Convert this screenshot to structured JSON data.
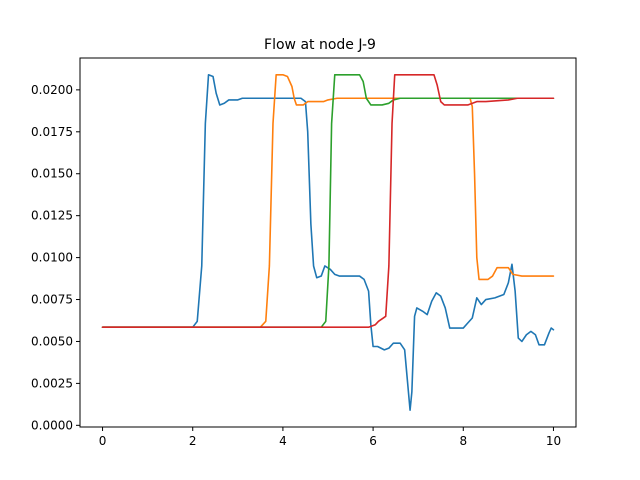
{
  "chart_data": {
    "type": "line",
    "title": "Flow at node J-9",
    "xlabel": "",
    "ylabel": "",
    "xlim": [
      -0.5,
      10.5
    ],
    "ylim": [
      -0.0001,
      0.0219
    ],
    "xticks": [
      0,
      2,
      4,
      6,
      8,
      10
    ],
    "xtick_labels": [
      "0",
      "2",
      "4",
      "6",
      "8",
      "10"
    ],
    "yticks": [
      0.0,
      0.0025,
      0.005,
      0.0075,
      0.01,
      0.0125,
      0.015,
      0.0175,
      0.02
    ],
    "ytick_labels": [
      "0.0000",
      "0.0025",
      "0.0050",
      "0.0075",
      "0.0100",
      "0.0125",
      "0.0150",
      "0.0175",
      "0.0200"
    ],
    "grid": false,
    "series": [
      {
        "color": "#1f77b4",
        "points": [
          [
            0,
            0.00585
          ],
          [
            2.0,
            0.00585
          ],
          [
            2.1,
            0.0062
          ],
          [
            2.2,
            0.0095
          ],
          [
            2.28,
            0.018
          ],
          [
            2.35,
            0.0209
          ],
          [
            2.45,
            0.0208
          ],
          [
            2.52,
            0.0198
          ],
          [
            2.6,
            0.0191
          ],
          [
            2.7,
            0.0192
          ],
          [
            2.8,
            0.0194
          ],
          [
            3.0,
            0.0194
          ],
          [
            3.1,
            0.0195
          ],
          [
            4.4,
            0.0195
          ],
          [
            4.5,
            0.0193
          ],
          [
            4.55,
            0.0175
          ],
          [
            4.62,
            0.012
          ],
          [
            4.68,
            0.0095
          ],
          [
            4.75,
            0.0088
          ],
          [
            4.85,
            0.0089
          ],
          [
            4.93,
            0.0095
          ],
          [
            5.05,
            0.0093
          ],
          [
            5.15,
            0.009
          ],
          [
            5.25,
            0.0089
          ],
          [
            5.5,
            0.0089
          ],
          [
            5.7,
            0.0089
          ],
          [
            5.8,
            0.0087
          ],
          [
            5.9,
            0.008
          ],
          [
            5.95,
            0.006
          ],
          [
            6.0,
            0.0047
          ],
          [
            6.1,
            0.0047
          ],
          [
            6.25,
            0.0045
          ],
          [
            6.35,
            0.0046
          ],
          [
            6.45,
            0.0049
          ],
          [
            6.6,
            0.0049
          ],
          [
            6.7,
            0.0045
          ],
          [
            6.75,
            0.003
          ],
          [
            6.82,
            0.0009
          ],
          [
            6.86,
            0.002
          ],
          [
            6.92,
            0.0065
          ],
          [
            6.97,
            0.007
          ],
          [
            7.1,
            0.0068
          ],
          [
            7.2,
            0.0066
          ],
          [
            7.3,
            0.0074
          ],
          [
            7.4,
            0.0079
          ],
          [
            7.5,
            0.0077
          ],
          [
            7.6,
            0.007
          ],
          [
            7.7,
            0.0058
          ],
          [
            8.0,
            0.0058
          ],
          [
            8.1,
            0.0061
          ],
          [
            8.2,
            0.0064
          ],
          [
            8.3,
            0.0076
          ],
          [
            8.4,
            0.0072
          ],
          [
            8.5,
            0.0075
          ],
          [
            8.7,
            0.0076
          ],
          [
            8.9,
            0.0078
          ],
          [
            9.0,
            0.0085
          ],
          [
            9.08,
            0.0096
          ],
          [
            9.15,
            0.008
          ],
          [
            9.22,
            0.0052
          ],
          [
            9.3,
            0.005
          ],
          [
            9.4,
            0.0054
          ],
          [
            9.5,
            0.0056
          ],
          [
            9.6,
            0.0054
          ],
          [
            9.68,
            0.0048
          ],
          [
            9.8,
            0.0048
          ],
          [
            9.9,
            0.0055
          ],
          [
            9.95,
            0.0058
          ],
          [
            10.0,
            0.0057
          ]
        ]
      },
      {
        "color": "#ff7f0e",
        "points": [
          [
            0,
            0.00585
          ],
          [
            3.5,
            0.00585
          ],
          [
            3.62,
            0.0062
          ],
          [
            3.7,
            0.0095
          ],
          [
            3.78,
            0.018
          ],
          [
            3.85,
            0.0209
          ],
          [
            4.0,
            0.0209
          ],
          [
            4.1,
            0.0208
          ],
          [
            4.2,
            0.0202
          ],
          [
            4.25,
            0.0195
          ],
          [
            4.3,
            0.0191
          ],
          [
            4.45,
            0.0191
          ],
          [
            4.55,
            0.0193
          ],
          [
            4.9,
            0.0193
          ],
          [
            5.0,
            0.0194
          ],
          [
            5.2,
            0.0195
          ],
          [
            8.15,
            0.0195
          ],
          [
            8.2,
            0.019
          ],
          [
            8.25,
            0.015
          ],
          [
            8.3,
            0.01
          ],
          [
            8.35,
            0.0087
          ],
          [
            8.55,
            0.0087
          ],
          [
            8.65,
            0.0089
          ],
          [
            8.75,
            0.0094
          ],
          [
            9.0,
            0.0094
          ],
          [
            9.1,
            0.009
          ],
          [
            9.3,
            0.0089
          ],
          [
            10.0,
            0.0089
          ]
        ]
      },
      {
        "color": "#2ca02c",
        "points": [
          [
            0,
            0.00585
          ],
          [
            4.85,
            0.00585
          ],
          [
            4.95,
            0.0062
          ],
          [
            5.02,
            0.0095
          ],
          [
            5.08,
            0.018
          ],
          [
            5.15,
            0.0209
          ],
          [
            5.7,
            0.0209
          ],
          [
            5.78,
            0.0205
          ],
          [
            5.85,
            0.0195
          ],
          [
            5.95,
            0.0191
          ],
          [
            6.2,
            0.0191
          ],
          [
            6.35,
            0.0192
          ],
          [
            6.45,
            0.0194
          ],
          [
            6.6,
            0.0195
          ],
          [
            10.0,
            0.0195
          ]
        ]
      },
      {
        "color": "#d62728",
        "points": [
          [
            0,
            0.00585
          ],
          [
            5.9,
            0.00585
          ],
          [
            6.05,
            0.006
          ],
          [
            6.12,
            0.0062
          ],
          [
            6.28,
            0.0065
          ],
          [
            6.35,
            0.0095
          ],
          [
            6.42,
            0.018
          ],
          [
            6.48,
            0.0209
          ],
          [
            7.35,
            0.0209
          ],
          [
            7.42,
            0.0203
          ],
          [
            7.5,
            0.0193
          ],
          [
            7.58,
            0.0191
          ],
          [
            8.1,
            0.0191
          ],
          [
            8.3,
            0.0193
          ],
          [
            8.5,
            0.0193
          ],
          [
            9.0,
            0.0194
          ],
          [
            9.2,
            0.0195
          ],
          [
            10.0,
            0.0195
          ]
        ]
      }
    ]
  }
}
